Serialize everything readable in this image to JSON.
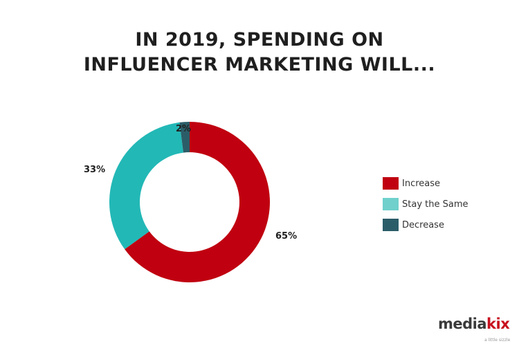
{
  "title_line1": "IN 2019, SPENDING ON",
  "title_line2": "INFLUENCER MARKETING WILL...",
  "chart_data": {
    "type": "pie",
    "subtype": "donut",
    "title": "IN 2019, SPENDING ON INFLUENCER MARKETING WILL...",
    "categories": [
      "Increase",
      "Stay the Same",
      "Decrease"
    ],
    "values": [
      65,
      33,
      2
    ],
    "unit": "%",
    "colors": [
      "#c00010",
      "#22b8b6",
      "#2b5d68"
    ],
    "legend_colors": [
      "#c00010",
      "#6fd0cc",
      "#2b5d68"
    ],
    "data_labels": [
      "65%",
      "33%",
      "2%"
    ],
    "legend_position": "right"
  },
  "labels": {
    "increase": "65%",
    "same": "33%",
    "decrease": "2%"
  },
  "legend": [
    {
      "label": "Increase",
      "color": "#c00010"
    },
    {
      "label": "Stay the Same",
      "color": "#6fd0cc"
    },
    {
      "label": "Decrease",
      "color": "#2b5d68"
    }
  ],
  "brand": {
    "part1": "media",
    "part2": "kix",
    "tagline": "a little sizzle"
  }
}
